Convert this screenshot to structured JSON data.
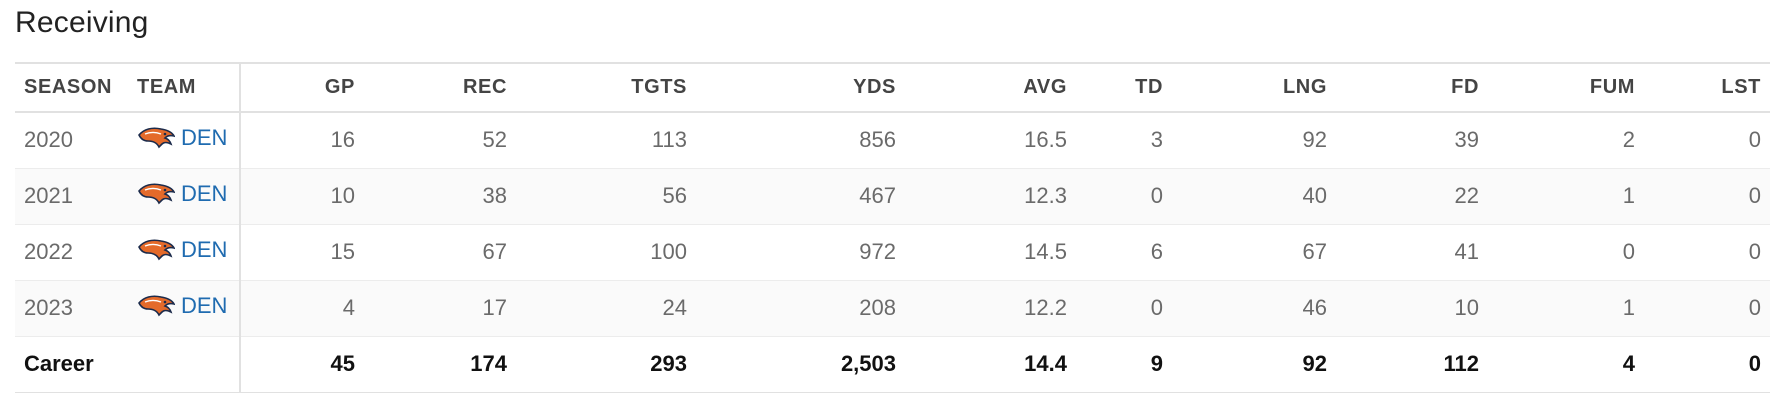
{
  "section": {
    "title": "Receiving"
  },
  "columns": {
    "season": "SEASON",
    "team": "TEAM",
    "gp": "GP",
    "rec": "REC",
    "tgts": "TGTS",
    "yds": "YDS",
    "avg": "AVG",
    "td": "TD",
    "lng": "LNG",
    "fd": "FD",
    "fum": "FUM",
    "lst": "LST"
  },
  "accent": {
    "link": "#1f6bb0",
    "logo_orange": "#e46a2a",
    "logo_navy": "#1c2b4b"
  },
  "rows": [
    {
      "season": "2020",
      "team": "DEN",
      "team_icon": "broncos-logo-icon",
      "gp": "16",
      "rec": "52",
      "tgts": "113",
      "yds": "856",
      "avg": "16.5",
      "td": "3",
      "lng": "92",
      "fd": "39",
      "fum": "2",
      "lst": "0"
    },
    {
      "season": "2021",
      "team": "DEN",
      "team_icon": "broncos-logo-icon",
      "gp": "10",
      "rec": "38",
      "tgts": "56",
      "yds": "467",
      "avg": "12.3",
      "td": "0",
      "lng": "40",
      "fd": "22",
      "fum": "1",
      "lst": "0"
    },
    {
      "season": "2022",
      "team": "DEN",
      "team_icon": "broncos-logo-icon",
      "gp": "15",
      "rec": "67",
      "tgts": "100",
      "yds": "972",
      "avg": "14.5",
      "td": "6",
      "lng": "67",
      "fd": "41",
      "fum": "0",
      "lst": "0"
    },
    {
      "season": "2023",
      "team": "DEN",
      "team_icon": "broncos-logo-icon",
      "gp": "4",
      "rec": "17",
      "tgts": "24",
      "yds": "208",
      "avg": "12.2",
      "td": "0",
      "lng": "46",
      "fd": "10",
      "fum": "1",
      "lst": "0"
    }
  ],
  "career": {
    "label": "Career",
    "gp": "45",
    "rec": "174",
    "tgts": "293",
    "yds": "2,503",
    "avg": "14.4",
    "td": "9",
    "lng": "92",
    "fd": "112",
    "fum": "4",
    "lst": "0"
  }
}
